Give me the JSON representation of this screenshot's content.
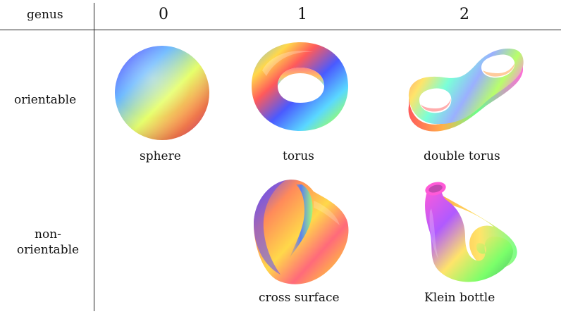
{
  "table": {
    "header_label": "genus",
    "columns": [
      "0",
      "1",
      "2"
    ],
    "rows": [
      {
        "label": "orientable"
      },
      {
        "label_line1": "non-",
        "label_line2": "orientable"
      }
    ]
  },
  "surfaces": {
    "sphere": "sphere",
    "torus": "torus",
    "double_torus": "double torus",
    "cross_surface": "cross surface",
    "klein_bottle": "Klein bottle"
  },
  "colors": {
    "rule": "#222222",
    "palette": [
      "#ff5a5a",
      "#ffe45a",
      "#5aff7a",
      "#5ac8ff",
      "#7a5aff",
      "#ff5ae0"
    ]
  }
}
